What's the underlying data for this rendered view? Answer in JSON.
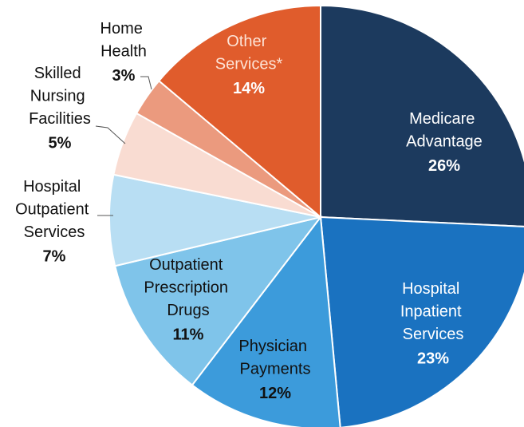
{
  "chart_data": {
    "type": "pie",
    "categories": [
      "Medicare Advantage",
      "Hospital Inpatient Services",
      "Physician Payments",
      "Outpatient Prescription Drugs",
      "Hospital Outpatient Services",
      "Skilled Nursing Facilities",
      "Home Health",
      "Other Services*"
    ],
    "values": [
      26,
      23,
      12,
      11,
      7,
      5,
      3,
      14
    ],
    "value_labels": [
      "26%",
      "23%",
      "12%",
      "11%",
      "7%",
      "5%",
      "3%",
      "14%"
    ],
    "colors": [
      "#1c3a5e",
      "#1a72c0",
      "#3c9bdb",
      "#7fc4ea",
      "#b8def3",
      "#f9dcd2",
      "#eb9a7e",
      "#e05c2c"
    ]
  }
}
